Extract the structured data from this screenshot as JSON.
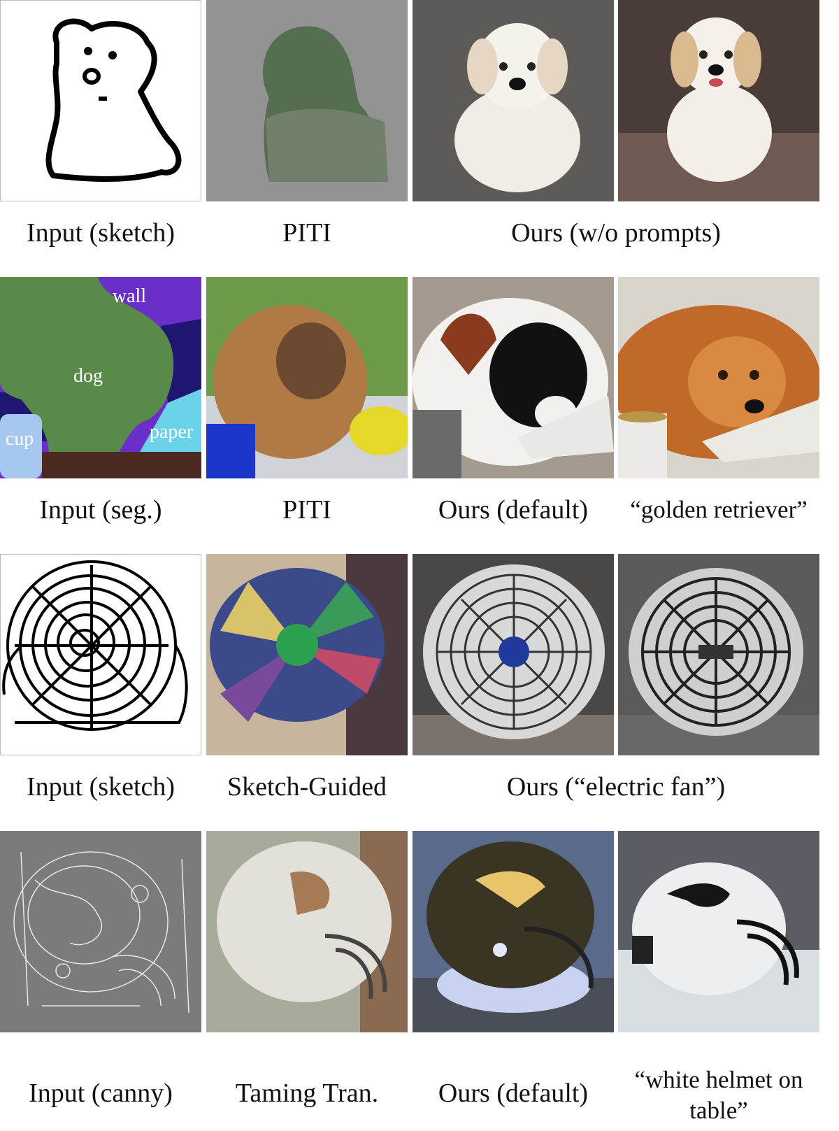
{
  "rows": [
    {
      "captions": {
        "input": "Input (sketch)",
        "baseline": "PITI",
        "ours": "Ours (w/o prompts)"
      }
    },
    {
      "labels": {
        "wall": "wall",
        "dog": "dog",
        "cup": "cup",
        "paper": "paper"
      },
      "captions": {
        "input": "Input (seg.)",
        "baseline": "PITI",
        "ours": "Ours (default)",
        "prompt": "“golden retriever”"
      }
    },
    {
      "captions": {
        "input": "Input (sketch)",
        "baseline": "Sketch-Guided",
        "ours": "Ours (“electric fan”)"
      }
    },
    {
      "captions": {
        "input": "Input (canny)",
        "baseline": "Taming Tran.",
        "ours": "Ours (default)",
        "prompt": "“white helmet on table”"
      }
    }
  ],
  "colors": {
    "seg_wall": "#6a2fc9",
    "seg_dog": "#5a8a4a",
    "seg_cup": "#a7c8ee",
    "seg_paper": "#6ad3ea",
    "seg_floor": "#4a2a22",
    "seg_dark": "#1e1670",
    "canny_bg": "#7b7b7b"
  }
}
